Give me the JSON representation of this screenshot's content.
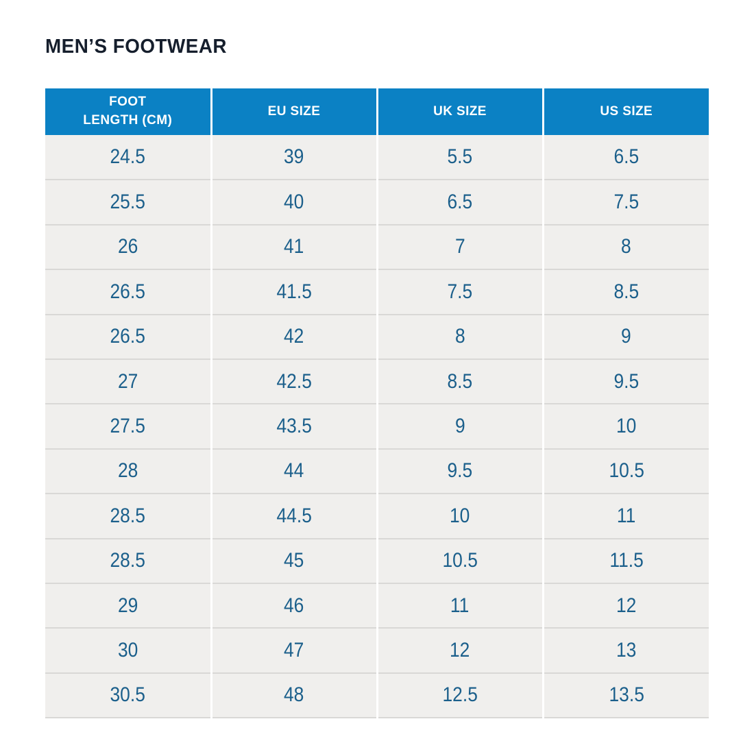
{
  "page": {
    "title": "MEN’S FOOTWEAR"
  },
  "colors": {
    "page_bg": "#ffffff",
    "title_text": "#151e2c",
    "header_bg": "#0b81c4",
    "header_text": "#ffffff",
    "cell_text": "#1b5f8b",
    "row_bg": "#f0efed",
    "row_divider": "#d9d8d6",
    "column_divider": "#ffffff"
  },
  "chart_data": {
    "type": "table",
    "title": "MEN’S FOOTWEAR",
    "columns": [
      "FOOT\nLENGTH (CM)",
      "EU SIZE",
      "UK SIZE",
      "US SIZE"
    ],
    "rows": [
      [
        "24.5",
        "39",
        "5.5",
        "6.5"
      ],
      [
        "25.5",
        "40",
        "6.5",
        "7.5"
      ],
      [
        "26",
        "41",
        "7",
        "8"
      ],
      [
        "26.5",
        "41.5",
        "7.5",
        "8.5"
      ],
      [
        "26.5",
        "42",
        "8",
        "9"
      ],
      [
        "27",
        "42.5",
        "8.5",
        "9.5"
      ],
      [
        "27.5",
        "43.5",
        "9",
        "10"
      ],
      [
        "28",
        "44",
        "9.5",
        "10.5"
      ],
      [
        "28.5",
        "44.5",
        "10",
        "11"
      ],
      [
        "28.5",
        "45",
        "10.5",
        "11.5"
      ],
      [
        "29",
        "46",
        "11",
        "12"
      ],
      [
        "30",
        "47",
        "12",
        "13"
      ],
      [
        "30.5",
        "48",
        "12.5",
        "13.5"
      ]
    ]
  }
}
